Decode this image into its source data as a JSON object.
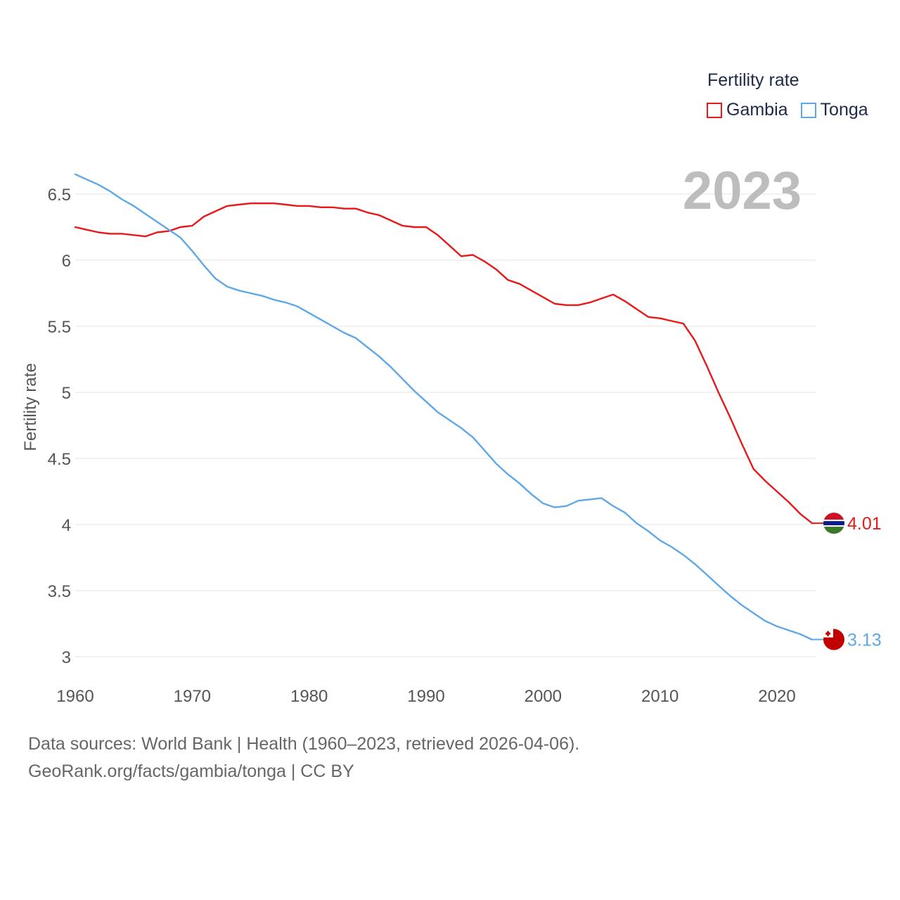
{
  "legend": {
    "title": "Fertility rate",
    "items": [
      {
        "name": "Gambia",
        "color": "#e8191b"
      },
      {
        "name": "Tonga",
        "color": "#5fa8e8"
      }
    ]
  },
  "year_label": "2023",
  "source": {
    "line1": "Data sources: World Bank | Health (1960–2023, retrieved 2026-04-06).",
    "line2": "GeoRank.org/facts/gambia/tonga | CC BY"
  },
  "chart_data": {
    "type": "line",
    "title": "Fertility rate",
    "xlabel": "",
    "ylabel": "Fertility rate",
    "xlim": [
      1960,
      2023
    ],
    "ylim": [
      3,
      6.7
    ],
    "x_ticks": [
      "1960",
      "1970",
      "1980",
      "1990",
      "2000",
      "2010",
      "2020"
    ],
    "y_ticks": [
      "3",
      "3.5",
      "4",
      "4.5",
      "5",
      "5.5",
      "6",
      "6.5"
    ],
    "grid": true,
    "legend_position": "top-right",
    "x": [
      1960,
      1961,
      1962,
      1963,
      1964,
      1965,
      1966,
      1967,
      1968,
      1969,
      1970,
      1971,
      1972,
      1973,
      1974,
      1975,
      1976,
      1977,
      1978,
      1979,
      1980,
      1981,
      1982,
      1983,
      1984,
      1985,
      1986,
      1987,
      1988,
      1989,
      1990,
      1991,
      1992,
      1993,
      1994,
      1995,
      1996,
      1997,
      1998,
      1999,
      2000,
      2001,
      2002,
      2003,
      2004,
      2005,
      2006,
      2007,
      2008,
      2009,
      2010,
      2011,
      2012,
      2013,
      2014,
      2015,
      2016,
      2017,
      2018,
      2019,
      2020,
      2021,
      2022,
      2023
    ],
    "series": [
      {
        "name": "Gambia",
        "color": "#e8191b",
        "end_label": "4.01",
        "values": [
          6.25,
          6.23,
          6.21,
          6.2,
          6.2,
          6.19,
          6.18,
          6.21,
          6.22,
          6.25,
          6.26,
          6.33,
          6.37,
          6.41,
          6.42,
          6.43,
          6.43,
          6.43,
          6.42,
          6.41,
          6.41,
          6.4,
          6.4,
          6.39,
          6.39,
          6.36,
          6.34,
          6.3,
          6.26,
          6.25,
          6.25,
          6.19,
          6.11,
          6.03,
          6.04,
          5.99,
          5.93,
          5.85,
          5.82,
          5.77,
          5.72,
          5.67,
          5.66,
          5.66,
          5.68,
          5.71,
          5.74,
          5.69,
          5.63,
          5.57,
          5.56,
          5.54,
          5.52,
          5.39,
          5.2,
          5.0,
          4.81,
          4.61,
          4.42,
          4.33,
          4.25,
          4.17,
          4.08,
          4.01
        ]
      },
      {
        "name": "Tonga",
        "color": "#5fa8e8",
        "end_label": "3.13",
        "values": [
          6.65,
          6.61,
          6.57,
          6.52,
          6.46,
          6.41,
          6.35,
          6.29,
          6.23,
          6.17,
          6.07,
          5.96,
          5.86,
          5.8,
          5.77,
          5.75,
          5.73,
          5.7,
          5.68,
          5.65,
          5.6,
          5.55,
          5.5,
          5.45,
          5.41,
          5.34,
          5.27,
          5.19,
          5.1,
          5.01,
          4.93,
          4.85,
          4.79,
          4.73,
          4.66,
          4.56,
          4.46,
          4.38,
          4.31,
          4.23,
          4.16,
          4.13,
          4.14,
          4.18,
          4.19,
          4.2,
          4.14,
          4.09,
          4.01,
          3.95,
          3.88,
          3.83,
          3.77,
          3.7,
          3.62,
          3.54,
          3.46,
          3.39,
          3.33,
          3.27,
          3.23,
          3.2,
          3.17,
          3.13
        ]
      }
    ]
  }
}
